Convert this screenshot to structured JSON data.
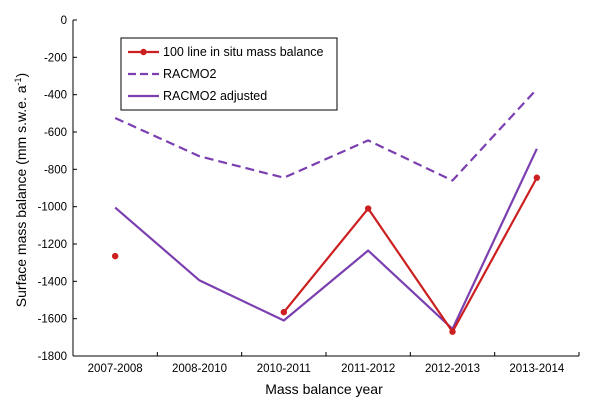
{
  "chart_data": {
    "type": "line",
    "title": "",
    "xlabel": "Mass balance year",
    "ylabel_main": "Surface mass balance (mm s.w.e. a",
    "ylabel_sup": "-1",
    "ylabel_tail": ")",
    "categories": [
      "2007-2008",
      "2008-2010",
      "2010-2011",
      "2011-2012",
      "2012-2013",
      "2013-2014"
    ],
    "ylim": [
      -1800,
      0
    ],
    "yticks": [
      0,
      -200,
      -400,
      -600,
      -800,
      -1000,
      -1200,
      -1400,
      -1600,
      -1800
    ],
    "grid": false,
    "legend_position": "top-left",
    "series": [
      {
        "name": "100 line in situ mass balance",
        "color": "#cc1f1f",
        "style": "solid-markers",
        "values": [
          -1265,
          null,
          -1565,
          -1010,
          -1670,
          -845
        ]
      },
      {
        "name": "RACMO2",
        "color": "#7b3fb0",
        "style": "dashed",
        "values": [
          -525,
          -730,
          -845,
          -645,
          -860,
          -370
        ]
      },
      {
        "name": "RACMO2 adjusted",
        "color": "#7b3fb0",
        "style": "solid",
        "values": [
          -1005,
          -1395,
          -1610,
          -1235,
          -1655,
          -690
        ]
      }
    ]
  }
}
